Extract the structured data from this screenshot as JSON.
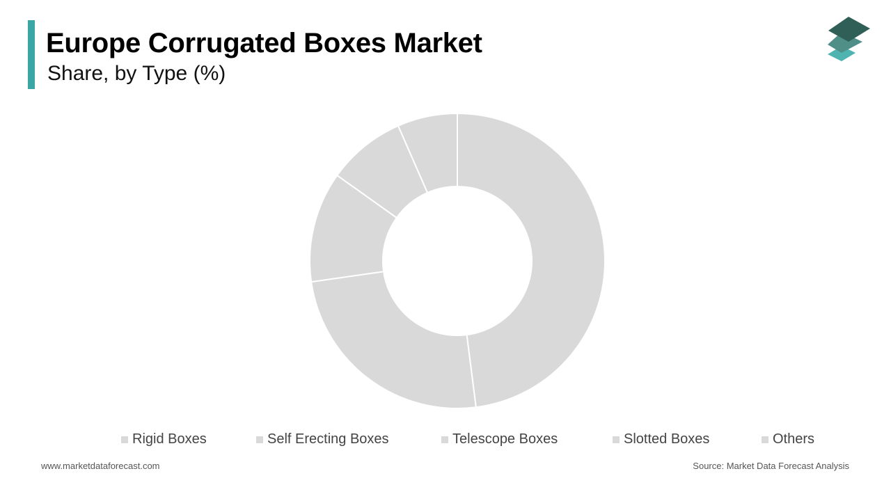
{
  "header": {
    "title": "Europe Corrugated Boxes Market",
    "subtitle": "Share, by Type (%)",
    "accent_color": "#3aa6a6"
  },
  "logo": {
    "icon": "stacked-layers-icon",
    "colors": [
      "#2f5f57",
      "#4f8f87",
      "#4fb3b0"
    ]
  },
  "chart_data": {
    "type": "pie",
    "variant": "donut",
    "title": "",
    "categories": [
      "Rigid Boxes",
      "Self Erecting Boxes",
      "Telescope Boxes",
      "Slotted Boxes",
      "Others"
    ],
    "values": [
      47.5,
      24.5,
      12,
      8.5,
      6.5
    ],
    "colors": [
      "#d9d9d9",
      "#d9d9d9",
      "#d9d9d9",
      "#d9d9d9",
      "#d9d9d9"
    ],
    "legend_position": "bottom"
  },
  "footer": {
    "website": "www.marketdataforecast.com",
    "source": "Source: Market Data Forecast Analysis"
  }
}
